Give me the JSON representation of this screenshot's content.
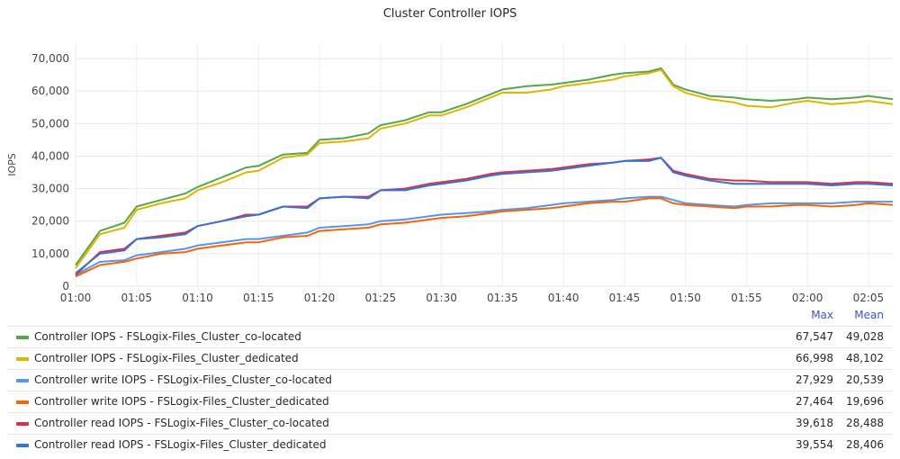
{
  "chart_data": {
    "type": "line",
    "title": "Cluster Controller IOPS",
    "ylabel": "IOPS",
    "xlabel": "",
    "ylim": [
      0,
      75000
    ],
    "yticks": [
      0,
      10000,
      20000,
      30000,
      40000,
      50000,
      60000,
      70000
    ],
    "ytick_labels": [
      "0",
      "10,000",
      "20,000",
      "30,000",
      "40,000",
      "50,000",
      "60,000",
      "70,000"
    ],
    "x_range_minutes": [
      "01:00",
      "02:07"
    ],
    "xticks": [
      "01:00",
      "01:05",
      "01:10",
      "01:15",
      "01:20",
      "01:25",
      "01:30",
      "01:35",
      "01:40",
      "01:45",
      "01:50",
      "01:55",
      "02:00",
      "02:05"
    ],
    "grid": true,
    "legend_position": "bottom",
    "legend_columns": [
      "Max",
      "Mean"
    ],
    "series": [
      {
        "name": "Controller IOPS - FSLogix-Files_Cluster_co-located",
        "color": "#56a64b",
        "max": "67,547",
        "mean": "49,028",
        "times": [
          "01:00",
          "01:02",
          "01:04",
          "01:05",
          "01:07",
          "01:09",
          "01:10",
          "01:12",
          "01:14",
          "01:15",
          "01:17",
          "01:19",
          "01:20",
          "01:22",
          "01:24",
          "01:25",
          "01:27",
          "01:29",
          "01:30",
          "01:32",
          "01:34",
          "01:35",
          "01:37",
          "01:39",
          "01:40",
          "01:42",
          "01:44",
          "01:45",
          "01:47",
          "01:48",
          "01:49",
          "01:50",
          "01:52",
          "01:54",
          "01:55",
          "01:57",
          "01:59",
          "02:00",
          "02:02",
          "02:04",
          "02:05",
          "02:07"
        ],
        "values": [
          6500,
          17000,
          19500,
          24500,
          26500,
          28500,
          30500,
          33500,
          36500,
          37000,
          40500,
          41000,
          45000,
          45500,
          47000,
          49500,
          51000,
          53500,
          53500,
          56000,
          59000,
          60500,
          61500,
          62000,
          62500,
          63500,
          65000,
          65500,
          66000,
          67000,
          62000,
          60500,
          58500,
          58000,
          57500,
          57000,
          57500,
          58000,
          57500,
          58000,
          58500,
          57500
        ]
      },
      {
        "name": "Controller IOPS - FSLogix-Files_Cluster_dedicated",
        "color": "#e0b400",
        "max": "66,998",
        "mean": "48,102",
        "times": [
          "01:00",
          "01:02",
          "01:04",
          "01:05",
          "01:07",
          "01:09",
          "01:10",
          "01:12",
          "01:14",
          "01:15",
          "01:17",
          "01:19",
          "01:20",
          "01:22",
          "01:24",
          "01:25",
          "01:27",
          "01:29",
          "01:30",
          "01:32",
          "01:34",
          "01:35",
          "01:37",
          "01:39",
          "01:40",
          "01:42",
          "01:44",
          "01:45",
          "01:47",
          "01:48",
          "01:49",
          "01:50",
          "01:52",
          "01:54",
          "01:55",
          "01:57",
          "01:59",
          "02:00",
          "02:02",
          "02:04",
          "02:05",
          "02:07"
        ],
        "values": [
          5500,
          16000,
          18000,
          23500,
          25500,
          27000,
          29500,
          32000,
          35000,
          35500,
          39500,
          40500,
          44000,
          44500,
          45500,
          48500,
          50000,
          52500,
          52500,
          55000,
          58000,
          59500,
          59500,
          60500,
          61500,
          62500,
          63500,
          64500,
          65500,
          66500,
          61500,
          59500,
          57500,
          56500,
          55500,
          55000,
          56500,
          57000,
          56000,
          56500,
          57000,
          56000
        ]
      },
      {
        "name": "Controller write IOPS - FSLogix-Files_Cluster_co-located",
        "color": "#5794f2",
        "max": "27,929",
        "mean": "20,539",
        "times": [
          "01:00",
          "01:02",
          "01:04",
          "01:05",
          "01:07",
          "01:09",
          "01:10",
          "01:12",
          "01:14",
          "01:15",
          "01:17",
          "01:19",
          "01:20",
          "01:22",
          "01:24",
          "01:25",
          "01:27",
          "01:29",
          "01:30",
          "01:32",
          "01:34",
          "01:35",
          "01:37",
          "01:39",
          "01:40",
          "01:42",
          "01:44",
          "01:45",
          "01:47",
          "01:48",
          "01:49",
          "01:50",
          "01:52",
          "01:54",
          "01:55",
          "01:57",
          "01:59",
          "02:00",
          "02:02",
          "02:04",
          "02:05",
          "02:07"
        ],
        "values": [
          3500,
          7500,
          8000,
          9500,
          10500,
          11500,
          12500,
          13500,
          14500,
          14500,
          15500,
          16500,
          18000,
          18500,
          19000,
          20000,
          20500,
          21500,
          22000,
          22500,
          23000,
          23500,
          24000,
          25000,
          25500,
          26000,
          26500,
          27000,
          27500,
          27500,
          26500,
          25500,
          25000,
          24500,
          25000,
          25500,
          25500,
          25500,
          25500,
          26000,
          26000,
          26000
        ]
      },
      {
        "name": "Controller write IOPS - FSLogix-Files_Cluster_dedicated",
        "color": "#fa6400",
        "max": "27,464",
        "mean": "19,696",
        "times": [
          "01:00",
          "01:02",
          "01:04",
          "01:05",
          "01:07",
          "01:09",
          "01:10",
          "01:12",
          "01:14",
          "01:15",
          "01:17",
          "01:19",
          "01:20",
          "01:22",
          "01:24",
          "01:25",
          "01:27",
          "01:29",
          "01:30",
          "01:32",
          "01:34",
          "01:35",
          "01:37",
          "01:39",
          "01:40",
          "01:42",
          "01:44",
          "01:45",
          "01:47",
          "01:48",
          "01:49",
          "01:50",
          "01:52",
          "01:54",
          "01:55",
          "01:57",
          "01:59",
          "02:00",
          "02:02",
          "02:04",
          "02:05",
          "02:07"
        ],
        "values": [
          3000,
          6500,
          7500,
          8500,
          10000,
          10500,
          11500,
          12500,
          13500,
          13500,
          15000,
          15500,
          17000,
          17500,
          18000,
          19000,
          19500,
          20500,
          21000,
          21500,
          22500,
          23000,
          23500,
          24000,
          24500,
          25500,
          26000,
          26000,
          27000,
          27000,
          25500,
          25000,
          24500,
          24000,
          24500,
          24500,
          25000,
          25000,
          24500,
          25000,
          25500,
          25000
        ]
      },
      {
        "name": "Controller read IOPS - FSLogix-Files_Cluster_co-located",
        "color": "#e02f44",
        "max": "39,618",
        "mean": "28,488",
        "times": [
          "01:00",
          "01:02",
          "01:04",
          "01:05",
          "01:07",
          "01:09",
          "01:10",
          "01:12",
          "01:14",
          "01:15",
          "01:17",
          "01:19",
          "01:20",
          "01:22",
          "01:24",
          "01:25",
          "01:27",
          "01:29",
          "01:30",
          "01:32",
          "01:34",
          "01:35",
          "01:37",
          "01:39",
          "01:40",
          "01:42",
          "01:44",
          "01:45",
          "01:47",
          "01:48",
          "01:49",
          "01:50",
          "01:52",
          "01:54",
          "01:55",
          "01:57",
          "01:59",
          "02:00",
          "02:02",
          "02:04",
          "02:05",
          "02:07"
        ],
        "values": [
          3500,
          10500,
          11500,
          14500,
          15500,
          16500,
          18500,
          20000,
          22000,
          22000,
          24500,
          24500,
          27000,
          27500,
          27500,
          29500,
          30000,
          31500,
          32000,
          33000,
          34500,
          35000,
          35500,
          36000,
          36500,
          37500,
          38000,
          38500,
          39000,
          39500,
          35500,
          34500,
          33000,
          32500,
          32500,
          32000,
          32000,
          32000,
          31500,
          32000,
          32000,
          31500
        ]
      },
      {
        "name": "Controller read IOPS - FSLogix-Files_Cluster_dedicated",
        "color": "#3274d9",
        "max": "39,554",
        "mean": "28,406",
        "times": [
          "01:00",
          "01:02",
          "01:04",
          "01:05",
          "01:07",
          "01:09",
          "01:10",
          "01:12",
          "01:14",
          "01:15",
          "01:17",
          "01:19",
          "01:20",
          "01:22",
          "01:24",
          "01:25",
          "01:27",
          "01:29",
          "01:30",
          "01:32",
          "01:34",
          "01:35",
          "01:37",
          "01:39",
          "01:40",
          "01:42",
          "01:44",
          "01:45",
          "01:47",
          "01:48",
          "01:49",
          "01:50",
          "01:52",
          "01:54",
          "01:55",
          "01:57",
          "01:59",
          "02:00",
          "02:02",
          "02:04",
          "02:05",
          "02:07"
        ],
        "values": [
          4000,
          10000,
          11000,
          14500,
          15000,
          16000,
          18500,
          20000,
          21500,
          22000,
          24500,
          24000,
          27000,
          27500,
          27000,
          29500,
          29500,
          31000,
          31500,
          32500,
          34000,
          34500,
          35000,
          35500,
          36000,
          37000,
          38000,
          38500,
          38500,
          39500,
          35000,
          34000,
          32500,
          31500,
          31500,
          31500,
          31500,
          31500,
          31000,
          31500,
          31500,
          31000
        ]
      }
    ]
  }
}
